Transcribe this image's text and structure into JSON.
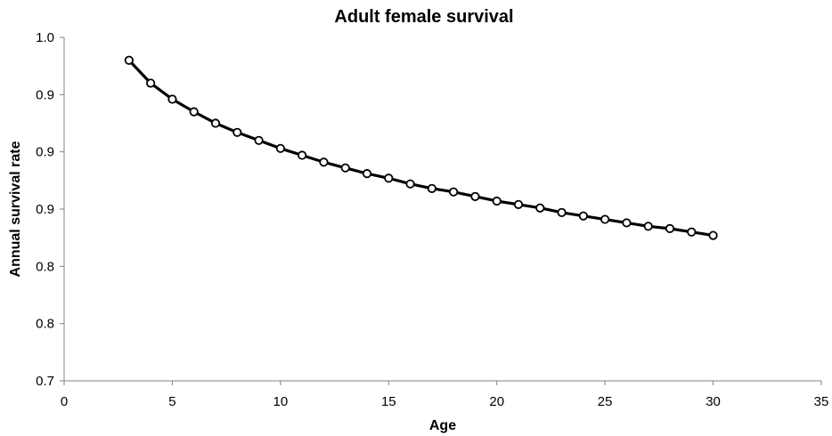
{
  "chart_data": {
    "type": "line",
    "title": "Adult female survival",
    "xlabel": "Age",
    "ylabel": "Annual survival rate",
    "xlim": [
      0,
      35
    ],
    "ylim": [
      0.7,
      1.0
    ],
    "x_ticks": [
      0,
      5,
      10,
      15,
      20,
      25,
      30,
      35
    ],
    "x_tick_labels": [
      "0",
      "5",
      "10",
      "15",
      "20",
      "25",
      "30",
      "35"
    ],
    "y_ticks": [
      0.7,
      0.75,
      0.8,
      0.85,
      0.9,
      0.95,
      1.0
    ],
    "y_tick_labels": [
      "0.7",
      "0.8",
      "0.8",
      "0.9",
      "0.9",
      "0.9",
      "1.0"
    ],
    "grid": false,
    "legend": "none",
    "series": [
      {
        "marker": "open-circle",
        "line_color": "#000000",
        "x": [
          3,
          4,
          5,
          6,
          7,
          8,
          9,
          10,
          11,
          12,
          13,
          14,
          15,
          16,
          17,
          18,
          19,
          20,
          21,
          22,
          23,
          24,
          25,
          26,
          27,
          28,
          29,
          30
        ],
        "y": [
          0.98,
          0.96,
          0.946,
          0.935,
          0.925,
          0.917,
          0.91,
          0.903,
          0.897,
          0.891,
          0.886,
          0.881,
          0.877,
          0.872,
          0.868,
          0.865,
          0.861,
          0.857,
          0.854,
          0.851,
          0.847,
          0.844,
          0.841,
          0.838,
          0.835,
          0.833,
          0.83,
          0.827
        ]
      }
    ]
  }
}
